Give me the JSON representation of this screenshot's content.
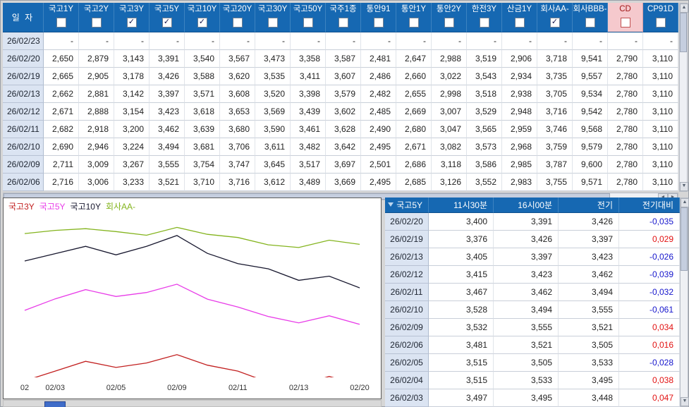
{
  "window": {
    "bg": "#d6d6d6",
    "header_blue": "#1668b2",
    "up_color": "#e21212",
    "down_color": "#1515cc",
    "highlight_header_bg": "#f5c9cd"
  },
  "top_table": {
    "date_header": "일 자",
    "columns": [
      {
        "label": "국고1Y",
        "checked": false
      },
      {
        "label": "국고2Y",
        "checked": false
      },
      {
        "label": "국고3Y",
        "checked": true
      },
      {
        "label": "국고5Y",
        "checked": true
      },
      {
        "label": "국고10Y",
        "checked": true
      },
      {
        "label": "국고20Y",
        "checked": false
      },
      {
        "label": "국고30Y",
        "checked": false
      },
      {
        "label": "국고50Y",
        "checked": false
      },
      {
        "label": "국주1종",
        "checked": false
      },
      {
        "label": "통안91",
        "checked": false
      },
      {
        "label": "통안1Y",
        "checked": false
      },
      {
        "label": "통안2Y",
        "checked": false
      },
      {
        "label": "한전3Y",
        "checked": false
      },
      {
        "label": "산금1Y",
        "checked": false
      },
      {
        "label": "회사AA-",
        "checked": true
      },
      {
        "label": "회사BBB-",
        "checked": false
      },
      {
        "label": "CD",
        "checked": false,
        "highlight": true
      },
      {
        "label": "CP91D",
        "checked": false
      }
    ],
    "rows": [
      {
        "date": "26/02/23",
        "values": [
          "-",
          "-",
          "-",
          "-",
          "-",
          "-",
          "-",
          "-",
          "-",
          "-",
          "-",
          "-",
          "-",
          "-",
          "-",
          "-",
          "-",
          "-"
        ]
      },
      {
        "date": "26/02/20",
        "values": [
          "2,650",
          "2,879",
          "3,143",
          "3,391",
          "3,540",
          "3,567",
          "3,473",
          "3,358",
          "3,587",
          "2,481",
          "2,647",
          "2,988",
          "3,519",
          "2,906",
          "3,718",
          "9,541",
          "2,790",
          "3,110"
        ]
      },
      {
        "date": "26/02/19",
        "values": [
          "2,665",
          "2,905",
          "3,178",
          "3,426",
          "3,588",
          "3,620",
          "3,535",
          "3,411",
          "3,607",
          "2,486",
          "2,660",
          "3,022",
          "3,543",
          "2,934",
          "3,735",
          "9,557",
          "2,780",
          "3,110"
        ]
      },
      {
        "date": "26/02/13",
        "values": [
          "2,662",
          "2,881",
          "3,142",
          "3,397",
          "3,571",
          "3,608",
          "3,520",
          "3,398",
          "3,579",
          "2,482",
          "2,655",
          "2,998",
          "3,518",
          "2,938",
          "3,705",
          "9,534",
          "2,780",
          "3,110"
        ]
      },
      {
        "date": "26/02/12",
        "values": [
          "2,671",
          "2,888",
          "3,154",
          "3,423",
          "3,618",
          "3,653",
          "3,569",
          "3,439",
          "3,602",
          "2,485",
          "2,669",
          "3,007",
          "3,529",
          "2,948",
          "3,716",
          "9,542",
          "2,780",
          "3,110"
        ]
      },
      {
        "date": "26/02/11",
        "values": [
          "2,682",
          "2,918",
          "3,200",
          "3,462",
          "3,639",
          "3,680",
          "3,590",
          "3,461",
          "3,628",
          "2,490",
          "2,680",
          "3,047",
          "3,565",
          "2,959",
          "3,746",
          "9,568",
          "2,780",
          "3,110"
        ]
      },
      {
        "date": "26/02/10",
        "values": [
          "2,690",
          "2,946",
          "3,224",
          "3,494",
          "3,681",
          "3,706",
          "3,611",
          "3,482",
          "3,642",
          "2,495",
          "2,671",
          "3,082",
          "3,573",
          "2,968",
          "3,759",
          "9,579",
          "2,780",
          "3,110"
        ]
      },
      {
        "date": "26/02/09",
        "values": [
          "2,711",
          "3,009",
          "3,267",
          "3,555",
          "3,754",
          "3,747",
          "3,645",
          "3,517",
          "3,697",
          "2,501",
          "2,686",
          "3,118",
          "3,586",
          "2,985",
          "3,787",
          "9,600",
          "2,780",
          "3,110"
        ]
      },
      {
        "date": "26/02/06",
        "values": [
          "2,716",
          "3,006",
          "3,233",
          "3,521",
          "3,710",
          "3,716",
          "3,612",
          "3,489",
          "3,669",
          "2,495",
          "2,685",
          "3,126",
          "3,552",
          "2,983",
          "3,755",
          "9,571",
          "2,780",
          "3,110"
        ]
      }
    ]
  },
  "right_table": {
    "headers": [
      "국고5Y",
      "11시30분",
      "16시00분",
      "전기",
      "전기대비"
    ],
    "rows": [
      {
        "date": "26/02/20",
        "values": [
          "3,400",
          "3,391",
          "3,426"
        ],
        "change": "-0,035"
      },
      {
        "date": "26/02/19",
        "values": [
          "3,376",
          "3,426",
          "3,397"
        ],
        "change": "0,029"
      },
      {
        "date": "26/02/13",
        "values": [
          "3,405",
          "3,397",
          "3,423"
        ],
        "change": "-0,026"
      },
      {
        "date": "26/02/12",
        "values": [
          "3,415",
          "3,423",
          "3,462"
        ],
        "change": "-0,039"
      },
      {
        "date": "26/02/11",
        "values": [
          "3,467",
          "3,462",
          "3,494"
        ],
        "change": "-0,032"
      },
      {
        "date": "26/02/10",
        "values": [
          "3,528",
          "3,494",
          "3,555"
        ],
        "change": "-0,061"
      },
      {
        "date": "26/02/09",
        "values": [
          "3,532",
          "3,555",
          "3,521"
        ],
        "change": "0,034"
      },
      {
        "date": "26/02/06",
        "values": [
          "3,481",
          "3,521",
          "3,505"
        ],
        "change": "0,016"
      },
      {
        "date": "26/02/05",
        "values": [
          "3,515",
          "3,505",
          "3,533"
        ],
        "change": "-0,028"
      },
      {
        "date": "26/02/04",
        "values": [
          "3,515",
          "3,533",
          "3,495"
        ],
        "change": "0,038"
      },
      {
        "date": "26/02/03",
        "values": [
          "3,497",
          "3,495",
          "3,448"
        ],
        "change": "0,047"
      }
    ]
  },
  "chart_data": {
    "type": "line",
    "title": "",
    "xlabel": "",
    "ylabel": "",
    "grid": false,
    "legend_position": "top-left",
    "x": [
      "02/02",
      "02/03",
      "02/04",
      "02/05",
      "02/06",
      "02/09",
      "02/10",
      "02/11",
      "02/12",
      "02/13",
      "02/19",
      "02/20"
    ],
    "x_tick_labels": [
      "02",
      "02/03",
      "02/05",
      "02/09",
      "02/11",
      "02/13",
      "02/20"
    ],
    "x_tick_indices": [
      0,
      1,
      3,
      5,
      7,
      9,
      11
    ],
    "ylim": [
      3.18,
      3.82
    ],
    "series": [
      {
        "name": "국고3Y",
        "color": "#c22020",
        "values": [
          3.16,
          3.2,
          3.24,
          3.215,
          3.233,
          3.267,
          3.224,
          3.2,
          3.154,
          3.142,
          3.178,
          3.143
        ]
      },
      {
        "name": "국고5Y",
        "color": "#e83ce8",
        "values": [
          3.448,
          3.495,
          3.533,
          3.505,
          3.521,
          3.555,
          3.494,
          3.462,
          3.423,
          3.397,
          3.426,
          3.391
        ]
      },
      {
        "name": "국고10Y",
        "color": "#17172e",
        "values": [
          3.65,
          3.68,
          3.71,
          3.675,
          3.71,
          3.754,
          3.681,
          3.639,
          3.618,
          3.571,
          3.588,
          3.54
        ]
      },
      {
        "name": "회사AA-",
        "color": "#84b41e",
        "values": [
          3.762,
          3.775,
          3.782,
          3.77,
          3.755,
          3.787,
          3.759,
          3.746,
          3.716,
          3.705,
          3.735,
          3.718
        ]
      }
    ]
  }
}
